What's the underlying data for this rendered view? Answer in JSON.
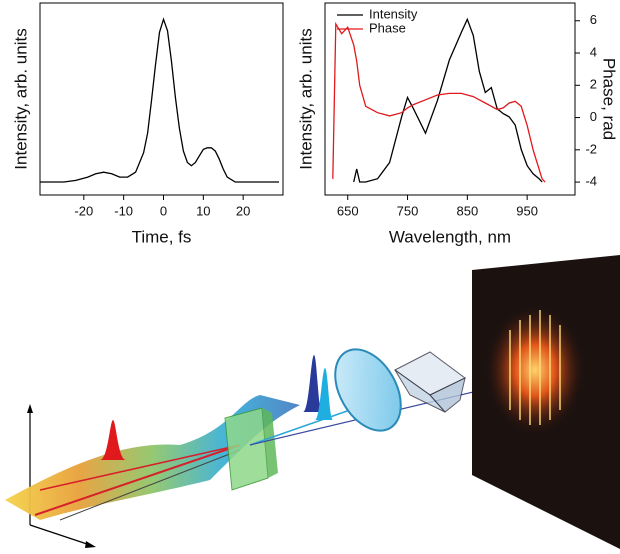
{
  "chart_data": [
    {
      "type": "line",
      "x_label": "Time, fs",
      "y_label": "Intensity, arb. units",
      "x": [
        -31,
        -28,
        -25,
        -22,
        -19,
        -17,
        -15,
        -13,
        -11,
        -9,
        -7,
        -5,
        -4,
        -3,
        -2,
        -1,
        0,
        1,
        2,
        3,
        4,
        5,
        6,
        7,
        8,
        9,
        10,
        11,
        12,
        13,
        14,
        15,
        16,
        18,
        20,
        23,
        26,
        29
      ],
      "xlim": [
        -31,
        30
      ],
      "xticks": [
        -20,
        -10,
        0,
        10,
        20
      ],
      "ylim": [
        -0.08,
        1.1
      ],
      "series": [
        {
          "name": "Intensity",
          "color": "#000000",
          "values": [
            0,
            0,
            0,
            0.01,
            0.03,
            0.05,
            0.06,
            0.05,
            0.03,
            0.03,
            0.06,
            0.18,
            0.3,
            0.5,
            0.72,
            0.92,
            1.0,
            0.93,
            0.74,
            0.52,
            0.33,
            0.19,
            0.12,
            0.1,
            0.12,
            0.16,
            0.2,
            0.21,
            0.21,
            0.19,
            0.14,
            0.08,
            0.03,
            0,
            0,
            0,
            0,
            0
          ]
        }
      ]
    },
    {
      "type": "line",
      "x_label": "Wavelength, nm",
      "y_label": "Intensity, arb. units",
      "y2_label": "Phase, rad",
      "x": [
        625,
        630,
        640,
        650,
        660,
        665,
        670,
        680,
        700,
        720,
        740,
        750,
        760,
        780,
        800,
        820,
        840,
        850,
        860,
        870,
        880,
        890,
        900,
        910,
        920,
        930,
        940,
        950,
        960,
        970,
        975,
        980
      ],
      "xlim": [
        612,
        1030
      ],
      "xticks": [
        650,
        750,
        850,
        950
      ],
      "ylim": [
        -0.08,
        1.1
      ],
      "y2lim": [
        -4.8,
        7.1
      ],
      "y2ticks": [
        -4,
        -2,
        0,
        2,
        4,
        6
      ],
      "legend": "upper-left",
      "series": [
        {
          "name": "Intensity",
          "color": "#000000",
          "values": [
            null,
            null,
            null,
            null,
            0,
            0.08,
            0,
            0,
            0.02,
            0.12,
            0.4,
            0.52,
            0.45,
            0.3,
            0.5,
            0.75,
            0.92,
            1.0,
            0.9,
            0.68,
            0.55,
            0.58,
            0.45,
            0.42,
            0.4,
            0.35,
            0.2,
            0.1,
            0.05,
            0.02,
            0,
            null
          ]
        },
        {
          "name": "Phase",
          "color": "#e0191c",
          "axis": "y2",
          "values": [
            -3.8,
            5.8,
            5.2,
            5.6,
            4.5,
            3.5,
            2,
            0.7,
            0.3,
            0.1,
            0.3,
            0.6,
            0.8,
            1.1,
            1.4,
            1.5,
            1.5,
            1.4,
            1.3,
            1.1,
            0.9,
            0.7,
            0.5,
            0.6,
            0.9,
            1.0,
            0.7,
            -0.5,
            -2,
            -3.2,
            -3.8,
            -4
          ]
        }
      ]
    }
  ]
}
